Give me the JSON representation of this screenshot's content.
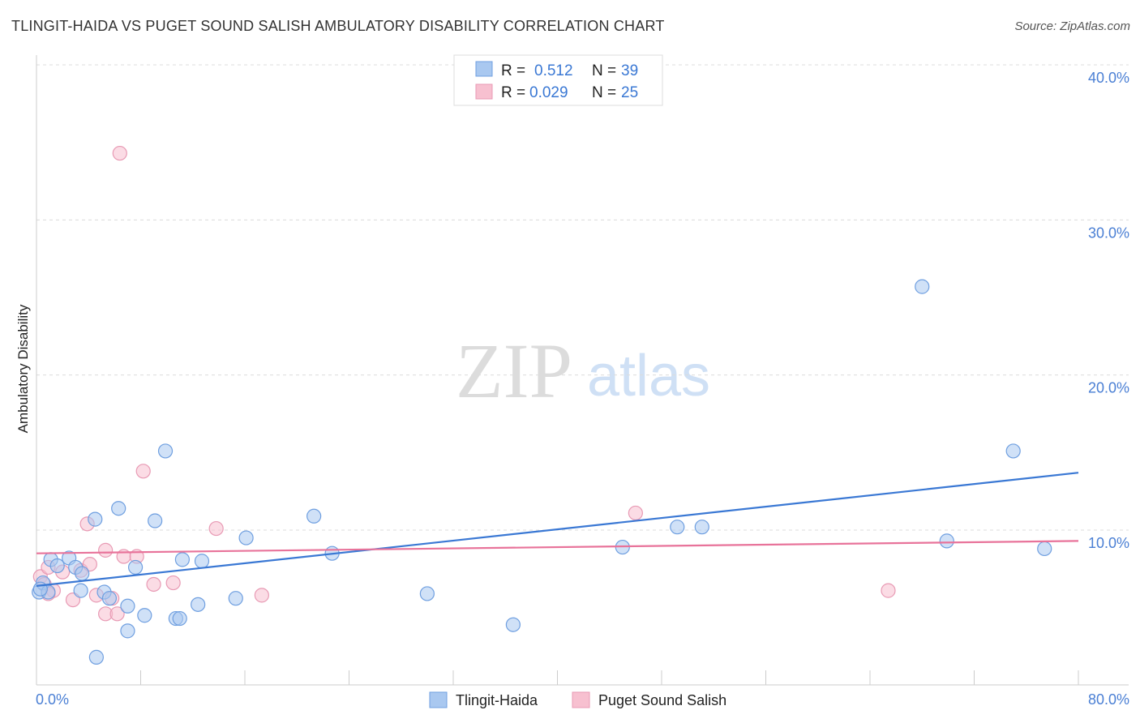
{
  "title": "TLINGIT-HAIDA VS PUGET SOUND SALISH AMBULATORY DISABILITY CORRELATION CHART",
  "source": "Source: ZipAtlas.com",
  "watermark": {
    "zip": "ZIP",
    "atlas": "atlas"
  },
  "legend": {
    "rows": [
      {
        "r_label": "R =",
        "r_value": "0.512",
        "n_label": "N =",
        "n_value": "39"
      },
      {
        "r_label": "R =",
        "r_value": "0.029",
        "n_label": "N =",
        "n_value": "25"
      }
    ]
  },
  "colors": {
    "blue_fill": "#a9c8f0",
    "blue_stroke": "#6f9fe0",
    "blue_line": "#3a78d4",
    "pink_fill": "#f7c0d0",
    "pink_stroke": "#e89ab4",
    "pink_line": "#e8739a",
    "accent_text": "#4a7fd4"
  },
  "chart_data": {
    "type": "scatter",
    "title": "TLINGIT-HAIDA VS PUGET SOUND SALISH AMBULATORY DISABILITY CORRELATION CHART",
    "xlabel": "",
    "ylabel": "Ambulatory Disability",
    "xlim": [
      0,
      80
    ],
    "ylim": [
      0,
      42
    ],
    "x_tick_labels": [
      "0.0%",
      "80.0%"
    ],
    "y_ticks": [
      10,
      20,
      30,
      40
    ],
    "y_tick_labels": [
      "10.0%",
      "20.0%",
      "30.0%",
      "40.0%"
    ],
    "grid": true,
    "legend_position": "top-center",
    "series": [
      {
        "name": "Tlingit-Haida",
        "color": "blue",
        "points": [
          [
            0.2,
            6.0
          ],
          [
            0.5,
            6.6
          ],
          [
            0.9,
            6.0
          ],
          [
            1.1,
            8.1
          ],
          [
            1.6,
            7.7
          ],
          [
            2.5,
            8.2
          ],
          [
            3.0,
            7.6
          ],
          [
            3.5,
            7.2
          ],
          [
            3.4,
            6.1
          ],
          [
            4.5,
            10.7
          ],
          [
            4.6,
            1.8
          ],
          [
            5.2,
            6.0
          ],
          [
            5.6,
            5.6
          ],
          [
            6.3,
            11.4
          ],
          [
            7.0,
            3.5
          ],
          [
            7.0,
            5.1
          ],
          [
            7.6,
            7.6
          ],
          [
            8.3,
            4.5
          ],
          [
            9.1,
            10.6
          ],
          [
            9.9,
            15.1
          ],
          [
            10.7,
            4.3
          ],
          [
            11.0,
            4.3
          ],
          [
            11.2,
            8.1
          ],
          [
            12.4,
            5.2
          ],
          [
            12.7,
            8.0
          ],
          [
            15.3,
            5.6
          ],
          [
            16.1,
            9.5
          ],
          [
            21.3,
            10.9
          ],
          [
            22.7,
            8.5
          ],
          [
            30.0,
            5.9
          ],
          [
            36.6,
            3.9
          ],
          [
            45.0,
            8.9
          ],
          [
            49.2,
            10.2
          ],
          [
            51.1,
            10.2
          ],
          [
            68.0,
            25.7
          ],
          [
            69.9,
            9.3
          ],
          [
            75.0,
            15.1
          ],
          [
            77.4,
            8.8
          ],
          [
            0.3,
            6.2
          ]
        ],
        "trend": [
          [
            0,
            6.4
          ],
          [
            80,
            13.7
          ]
        ]
      },
      {
        "name": "Puget Sound Salish",
        "color": "pink",
        "points": [
          [
            0.3,
            7.0
          ],
          [
            0.6,
            6.5
          ],
          [
            0.9,
            7.6
          ],
          [
            1.3,
            6.1
          ],
          [
            2.0,
            7.3
          ],
          [
            2.8,
            5.5
          ],
          [
            3.4,
            7.4
          ],
          [
            3.9,
            10.4
          ],
          [
            4.1,
            7.8
          ],
          [
            4.6,
            5.8
          ],
          [
            5.3,
            4.6
          ],
          [
            5.3,
            8.7
          ],
          [
            5.8,
            5.6
          ],
          [
            6.2,
            4.6
          ],
          [
            6.4,
            34.3
          ],
          [
            6.7,
            8.3
          ],
          [
            7.7,
            8.3
          ],
          [
            8.2,
            13.8
          ],
          [
            9.0,
            6.5
          ],
          [
            10.5,
            6.6
          ],
          [
            13.8,
            10.1
          ],
          [
            17.3,
            5.8
          ],
          [
            46.0,
            11.1
          ],
          [
            65.4,
            6.1
          ],
          [
            0.9,
            5.9
          ]
        ],
        "trend": [
          [
            0,
            8.5
          ],
          [
            80,
            9.3
          ]
        ]
      }
    ]
  },
  "bottom_legend": [
    "Tlingit-Haida",
    "Puget Sound Salish"
  ]
}
